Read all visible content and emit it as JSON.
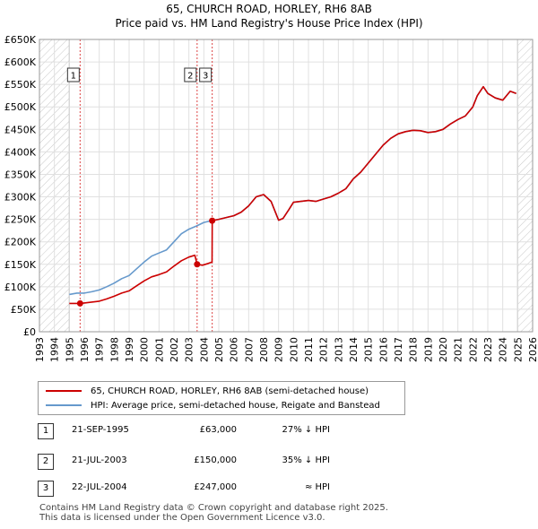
{
  "chart_data": {
    "type": "line",
    "title": "65, CHURCH ROAD, HORLEY, RH6 8AB",
    "subtitle": "Price paid vs. HM Land Registry's House Price Index (HPI)",
    "xlim": [
      1993,
      2026
    ],
    "ylim": [
      0,
      650000
    ],
    "x_ticks": [
      "1993",
      "1994",
      "1995",
      "1996",
      "1997",
      "1998",
      "1999",
      "2000",
      "2001",
      "2002",
      "2003",
      "2004",
      "2005",
      "2006",
      "2007",
      "2008",
      "2009",
      "2010",
      "2011",
      "2012",
      "2013",
      "2014",
      "2015",
      "2016",
      "2017",
      "2018",
      "2019",
      "2020",
      "2021",
      "2022",
      "2023",
      "2024",
      "2025",
      "2026"
    ],
    "y_ticks": [
      {
        "value": 0,
        "label": "£0"
      },
      {
        "value": 50000,
        "label": "£50K"
      },
      {
        "value": 100000,
        "label": "£100K"
      },
      {
        "value": 150000,
        "label": "£150K"
      },
      {
        "value": 200000,
        "label": "£200K"
      },
      {
        "value": 250000,
        "label": "£250K"
      },
      {
        "value": 300000,
        "label": "£300K"
      },
      {
        "value": 350000,
        "label": "£350K"
      },
      {
        "value": 400000,
        "label": "£400K"
      },
      {
        "value": 450000,
        "label": "£450K"
      },
      {
        "value": 500000,
        "label": "£500K"
      },
      {
        "value": 550000,
        "label": "£550K"
      },
      {
        "value": 600000,
        "label": "£600K"
      },
      {
        "value": 650000,
        "label": "£650K"
      }
    ],
    "hatch_before": 1995.0,
    "hatch_after": 2025.0,
    "series": [
      {
        "name": "hpi",
        "color": "#6699cc",
        "x": [
          1995.0,
          1995.5,
          1996.0,
          1996.5,
          1997.0,
          1997.5,
          1998.0,
          1998.5,
          1999.0,
          1999.5,
          2000.0,
          2000.5,
          2001.0,
          2001.5,
          2002.0,
          2002.5,
          2003.0,
          2003.5,
          2004.0,
          2004.5,
          2005.0,
          2005.5,
          2006.0,
          2006.5,
          2007.0,
          2007.5,
          2008.0,
          2008.5,
          2009.0,
          2009.3,
          2009.7,
          2010.0,
          2010.5,
          2011.0,
          2011.5,
          2012.0,
          2012.5,
          2013.0,
          2013.5,
          2014.0,
          2014.5,
          2015.0,
          2015.5,
          2016.0,
          2016.5,
          2017.0,
          2017.5,
          2018.0,
          2018.5,
          2019.0,
          2019.5,
          2020.0,
          2020.5,
          2021.0,
          2021.5,
          2022.0,
          2022.3,
          2022.7,
          2023.0,
          2023.5,
          2024.0,
          2024.5,
          2024.9
        ],
        "y": [
          83000,
          86000,
          86000,
          89000,
          93000,
          100000,
          108000,
          118000,
          125000,
          140000,
          155000,
          168000,
          175000,
          182000,
          200000,
          218000,
          228000,
          235000,
          243000,
          247000,
          250000,
          254000,
          258000,
          266000,
          280000,
          300000,
          305000,
          290000,
          248000,
          252000,
          272000,
          288000,
          290000,
          292000,
          290000,
          295000,
          300000,
          308000,
          318000,
          340000,
          355000,
          375000,
          395000,
          415000,
          430000,
          440000,
          445000,
          448000,
          447000,
          443000,
          445000,
          450000,
          462000,
          472000,
          480000,
          500000,
          525000,
          545000,
          530000,
          520000,
          515000,
          535000,
          530000
        ]
      },
      {
        "name": "price",
        "color": "#cc0000",
        "x": [
          1995.0,
          1995.72,
          1996.0,
          1996.5,
          1997.0,
          1997.5,
          1998.0,
          1998.5,
          1999.0,
          1999.5,
          2000.0,
          2000.5,
          2001.0,
          2001.5,
          2002.0,
          2002.5,
          2003.0,
          2003.4,
          2003.55,
          2003.9,
          2004.3,
          2004.55,
          2004.56,
          2005.0,
          2005.5,
          2006.0,
          2006.5,
          2007.0,
          2007.5,
          2008.0,
          2008.5,
          2009.0,
          2009.3,
          2009.7,
          2010.0,
          2010.5,
          2011.0,
          2011.5,
          2012.0,
          2012.5,
          2013.0,
          2013.5,
          2014.0,
          2014.5,
          2015.0,
          2015.5,
          2016.0,
          2016.5,
          2017.0,
          2017.5,
          2018.0,
          2018.5,
          2019.0,
          2019.5,
          2020.0,
          2020.5,
          2021.0,
          2021.5,
          2022.0,
          2022.3,
          2022.7,
          2023.0,
          2023.5,
          2024.0,
          2024.5,
          2024.9
        ],
        "y": [
          63000,
          63000,
          64000,
          66000,
          68000,
          73000,
          79000,
          86000,
          91000,
          102000,
          113000,
          122000,
          127000,
          133000,
          146000,
          158000,
          166000,
          170000,
          150000,
          148000,
          152000,
          155000,
          247000,
          250000,
          254000,
          258000,
          266000,
          280000,
          300000,
          305000,
          290000,
          248000,
          252000,
          272000,
          288000,
          290000,
          292000,
          290000,
          295000,
          300000,
          308000,
          318000,
          340000,
          355000,
          375000,
          395000,
          415000,
          430000,
          440000,
          445000,
          448000,
          447000,
          443000,
          445000,
          450000,
          462000,
          472000,
          480000,
          500000,
          525000,
          545000,
          530000,
          520000,
          515000,
          535000,
          530000
        ]
      }
    ],
    "sales": [
      {
        "n": "1",
        "x": 1995.72,
        "price": 63000
      },
      {
        "n": "2",
        "x": 2003.55,
        "price": 150000
      },
      {
        "n": "3",
        "x": 2004.56,
        "price": 247000
      }
    ]
  },
  "legend": {
    "price_label": "65, CHURCH ROAD, HORLEY, RH6 8AB (semi-detached house)",
    "hpi_label": "HPI: Average price, semi-detached house, Reigate and Banstead"
  },
  "transactions": [
    {
      "n": "1",
      "date": "21-SEP-1995",
      "price": "£63,000",
      "rel": "27% ↓ HPI"
    },
    {
      "n": "2",
      "date": "21-JUL-2003",
      "price": "£150,000",
      "rel": "35% ↓ HPI"
    },
    {
      "n": "3",
      "date": "22-JUL-2004",
      "price": "£247,000",
      "rel": "≈ HPI"
    }
  ],
  "footer": {
    "line1": "Contains HM Land Registry data © Crown copyright and database right 2025.",
    "line2": "This data is licensed under the Open Government Licence v3.0."
  }
}
